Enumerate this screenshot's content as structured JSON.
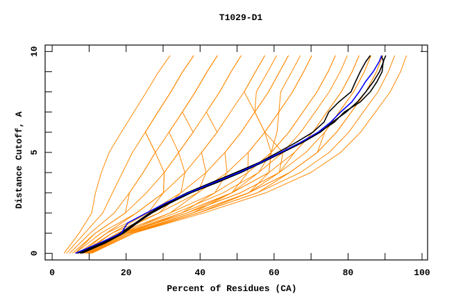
{
  "chart_data": {
    "type": "line",
    "title": "T1029-D1",
    "xlabel": "Percent of Residues (CA)",
    "ylabel": "Distance Cutoff, A",
    "xlim": [
      -1.9,
      101.5
    ],
    "ylim": [
      -0.33,
      10.32
    ],
    "x_ticks": [
      0,
      20,
      40,
      60,
      80,
      100
    ],
    "x_minor_ticks": [
      10,
      30,
      50,
      70,
      90
    ],
    "y_ticks": [
      0,
      5,
      10
    ],
    "y_minor_ticks": [
      1,
      2,
      3,
      4,
      6,
      7,
      8,
      9
    ],
    "colors": {
      "models": "#ff8800",
      "highlight": "#000000",
      "reference": "#0000ff"
    },
    "model_y_levels": [
      0,
      1,
      2,
      3,
      4,
      5,
      6,
      7,
      8,
      9,
      9.8
    ],
    "model_series": [
      [
        10.0,
        20.6,
        38.0,
        53.2,
        64.2,
        71.7,
        76.9,
        80.9,
        84.8,
        87.7,
        89.4
      ],
      [
        9.2,
        19.1,
        35.0,
        48.6,
        58.6,
        65.5,
        70.5,
        74.3,
        78.2,
        81.1,
        83.0
      ],
      [
        9.6,
        19.9,
        36.5,
        50.9,
        61.4,
        68.6,
        73.7,
        77.6,
        81.5,
        84.4,
        86.2
      ],
      [
        10.7,
        22.1,
        41.0,
        57.8,
        69.9,
        78.0,
        83.4,
        87.4,
        91.4,
        94.2,
        95.8
      ],
      [
        10.3,
        21.4,
        39.5,
        55.5,
        67.1,
        74.9,
        80.2,
        84.1,
        88.1,
        90.9,
        92.6
      ],
      [
        8.8,
        18.4,
        33.4,
        46.3,
        55.8,
        62.4,
        67.2,
        71.1,
        74.9,
        77.9,
        79.8
      ],
      [
        8.5,
        17.7,
        31.9,
        44.0,
        52.9,
        59.2,
        64.0,
        67.8,
        71.6,
        74.6,
        76.6
      ],
      [
        10.0,
        19.1,
        31.9,
        39.4,
        41.6,
        40.4,
        44.6,
        41.7,
        45.3,
        48.4,
        51.1
      ],
      [
        9.2,
        17.7,
        28.9,
        34.8,
        35.9,
        34.2,
        31.6,
        35.2,
        38.7,
        41.9,
        44.7
      ],
      [
        8.5,
        16.2,
        25.9,
        30.1,
        30.3,
        27.9,
        25.2,
        28.6,
        32.1,
        35.3,
        38.3
      ],
      [
        3.2,
        7.3,
        10.7,
        11.7,
        13.3,
        15.4,
        18.7,
        22.1,
        25.5,
        28.8,
        31.9
      ],
      [
        3.9,
        8.8,
        13.7,
        16.3,
        19.0,
        21.7,
        25.2,
        28.6,
        32.1,
        35.3,
        38.3
      ],
      [
        4.7,
        10.3,
        16.8,
        20.9,
        24.6,
        27.9,
        31.6,
        35.2,
        38.7,
        41.9,
        44.7
      ],
      [
        5.5,
        11.7,
        19.8,
        25.5,
        30.3,
        34.2,
        38.1,
        41.7,
        45.3,
        48.4,
        51.1
      ],
      [
        6.2,
        13.2,
        22.8,
        30.1,
        35.9,
        40.4,
        44.6,
        48.2,
        51.9,
        55.0,
        57.5
      ],
      [
        7.0,
        14.7,
        25.9,
        34.8,
        41.6,
        46.7,
        51.1,
        54.8,
        58.5,
        61.5,
        63.9
      ],
      [
        7.7,
        16.2,
        28.9,
        39.4,
        47.3,
        53.0,
        57.5,
        61.3,
        65.0,
        68.0,
        70.2
      ],
      [
        10.0,
        20.6,
        35.0,
        44.0,
        47.3,
        46.7,
        51.1,
        54.8,
        58.5,
        61.5,
        63.9
      ],
      [
        10.0,
        20.6,
        38.0,
        48.6,
        52.9,
        53.0,
        57.5,
        61.3,
        65.0,
        68.0,
        70.2
      ],
      [
        9.2,
        19.1,
        35.0,
        48.6,
        58.6,
        59.2,
        57.5,
        54.8,
        51.9,
        55.0,
        57.5
      ],
      [
        10.0,
        20.6,
        38.0,
        53.2,
        58.6,
        59.2,
        64.0,
        67.8,
        71.6,
        74.6,
        76.6
      ],
      [
        10.3,
        21.4,
        38.0,
        53.2,
        64.2,
        71.7,
        73.7,
        77.6,
        81.5,
        84.4,
        86.2
      ],
      [
        10.7,
        22.1,
        39.5,
        55.5,
        64.2,
        71.7,
        76.9,
        80.9,
        84.8,
        87.7,
        89.4
      ],
      [
        10.3,
        21.4,
        39.5,
        53.2,
        61.4,
        65.5,
        70.5,
        74.3,
        78.2,
        81.1,
        83.0
      ],
      [
        9.6,
        19.9,
        36.5,
        50.9,
        61.4,
        62.4,
        57.5,
        54.8,
        55.2,
        58.3,
        60.7
      ],
      [
        7.7,
        14.7,
        22.8,
        30.1,
        30.3,
        34.2,
        38.1,
        35.2,
        38.7,
        41.9,
        44.7
      ],
      [
        6.2,
        11.7,
        19.8,
        20.9,
        24.6,
        27.9,
        25.2,
        28.6,
        32.1,
        35.3,
        38.3
      ],
      [
        9.2,
        19.1,
        36.5,
        48.6,
        55.8,
        59.2,
        60.8,
        61.3,
        61.8,
        64.8,
        67.1
      ]
    ],
    "highlight_y_levels": [
      0,
      0.5,
      1,
      1.5,
      2,
      2.5,
      3,
      3.5,
      4,
      4.5,
      5,
      5.5,
      6,
      6.5,
      7,
      7.5,
      8,
      8.5,
      9,
      9.5,
      9.8
    ],
    "highlight_series": [
      [
        6.8,
        13.5,
        18.4,
        22.5,
        26.4,
        31.0,
        36.5,
        43.0,
        49.6,
        56.0,
        61.0,
        66.0,
        70.5,
        73.5,
        74.8,
        77.5,
        80.8,
        82.0,
        83.3,
        84.8,
        86.0
      ],
      [
        7.5,
        14.0,
        19.0,
        22.8,
        27.0,
        32.0,
        37.5,
        44.5,
        51.0,
        56.8,
        62.3,
        67.8,
        72.5,
        75.8,
        79.5,
        82.5,
        84.8,
        86.8,
        88.5,
        89.6,
        89.0
      ],
      [
        8.0,
        14.3,
        19.3,
        23.0,
        26.8,
        31.5,
        37.0,
        44.0,
        50.5,
        56.4,
        62.0,
        67.5,
        72.2,
        76.3,
        79.0,
        83.3,
        86.0,
        87.8,
        89.2,
        89.5,
        90.2
      ]
    ],
    "reference_series": [
      6.3,
      12.7,
      18.7,
      20.4,
      25.5,
      30.8,
      36.9,
      43.7,
      50.4,
      56.4,
      61.8,
      67.2,
      71.9,
      75.3,
      78.0,
      81.0,
      83.0,
      84.7,
      86.8,
      88.4,
      89.1
    ],
    "grid": false,
    "legend": "none"
  }
}
